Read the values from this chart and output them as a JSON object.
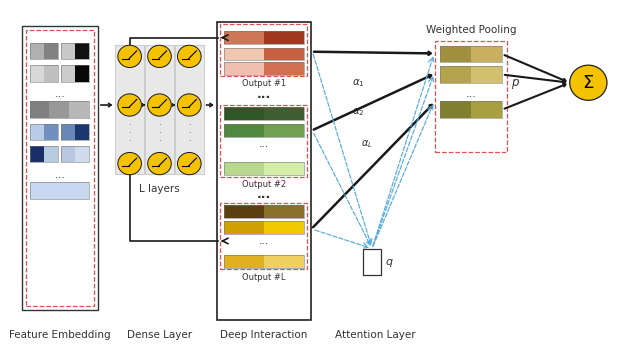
{
  "fig_width": 6.4,
  "fig_height": 3.53,
  "dpi": 100,
  "bg_color": "#ffffff",
  "label_fontsize": 7.5,
  "neuron_fill": "#f5c200",
  "neuron_edge": "#1a1a1a",
  "dashed_box_color": "#e05050",
  "arrow_color": "#1a1a1a",
  "blue_arrow_color": "#55aadd",
  "feature_embed_label": "Feature Embedding",
  "dense_label": "Dense Layer",
  "deep_label": "Deep Interaction",
  "attention_label": "Attention Layer",
  "weighted_pool_label": "Weighted Pooling",
  "llayers_label": "L layers",
  "p_label": "p",
  "q_label": "q"
}
